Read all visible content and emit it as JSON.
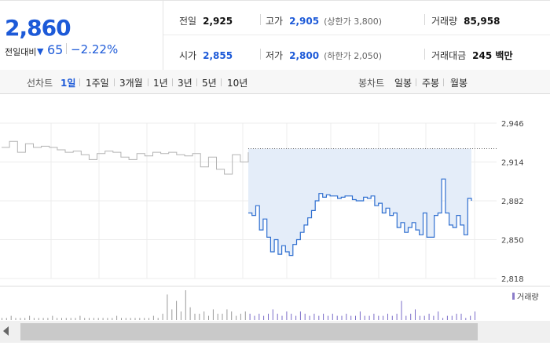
{
  "quote": {
    "price": "2,860",
    "change_label": "전일대비",
    "change_icon": "down-triangle-icon",
    "change_value": "65",
    "change_pct": "−2.22%",
    "stats": {
      "prev_close": {
        "label": "전일",
        "value": "2,925"
      },
      "high": {
        "label": "고가",
        "value": "2,905",
        "sub": "(상한가 3,800)"
      },
      "volume": {
        "label": "거래량",
        "value": "85,958"
      },
      "open": {
        "label": "시가",
        "value": "2,855"
      },
      "low": {
        "label": "저가",
        "value": "2,800",
        "sub": "(하한가 2,050)"
      },
      "amount": {
        "label": "거래대금",
        "value": "245 백만"
      }
    }
  },
  "tabs": {
    "line_label": "선차트",
    "line_items": [
      "1일",
      "1주일",
      "3개월",
      "1년",
      "3년",
      "5년",
      "10년"
    ],
    "candle_label": "봉차트",
    "candle_items": [
      "일봉",
      "주봉",
      "월봉"
    ]
  },
  "chart_data": {
    "type": "line",
    "y_ticks": [
      "2,946",
      "2,914",
      "2,882",
      "2,850",
      "2,818"
    ],
    "ylim": [
      2818,
      2946
    ],
    "prev_close": 2925,
    "series": [
      {
        "values": [
          2926,
          2931,
          2922,
          2929,
          2926,
          2927,
          2926,
          2924,
          2922,
          2923,
          2920,
          2916,
          2921,
          2923,
          2922,
          2918,
          2916,
          2921,
          2919,
          2922,
          2921,
          2922,
          2920,
          2919,
          2921,
          2910,
          2918,
          2908,
          2904,
          2920,
          2914,
          2922
        ]
      },
      {
        "values": [
          2872,
          2870,
          2878,
          2858,
          2867,
          2852,
          2840,
          2850,
          2838,
          2845,
          2840,
          2837,
          2846,
          2850,
          2856,
          2862,
          2868,
          2874,
          2882,
          2888,
          2885,
          2887,
          2886,
          2886,
          2884,
          2885,
          2886,
          2886,
          2883,
          2882,
          2882,
          2885,
          2884,
          2886,
          2878,
          2880,
          2872,
          2876,
          2870,
          2872,
          2860,
          2864,
          2856,
          2860,
          2864,
          2858,
          2854,
          2872,
          2852,
          2852,
          2870,
          2872,
          2900,
          2872,
          2862,
          2860,
          2870,
          2862,
          2854,
          2884,
          2882
        ]
      }
    ],
    "volume_label": "거래량",
    "volume": [
      1,
      1,
      2,
      1,
      1,
      1,
      2,
      1,
      1,
      1,
      1,
      2,
      1,
      1,
      1,
      1,
      1,
      2,
      1,
      1,
      1,
      1,
      1,
      1,
      1,
      2,
      1,
      1,
      1,
      1,
      1,
      1,
      1,
      2,
      1,
      3,
      12,
      5,
      9,
      4,
      14,
      6,
      3,
      3,
      4,
      2,
      5,
      3,
      3,
      5,
      4,
      2,
      3,
      4,
      3,
      2,
      3,
      2,
      3,
      5,
      3,
      2,
      4,
      3,
      2,
      4,
      3,
      2,
      3,
      2,
      3,
      2,
      3,
      2,
      2,
      3,
      2,
      2,
      4,
      2,
      2,
      3,
      2,
      2,
      3,
      2,
      3,
      9,
      2,
      3,
      5,
      2,
      2,
      3,
      2,
      4,
      1,
      2,
      2,
      3,
      3,
      1,
      2,
      4
    ]
  },
  "scrollbar": {
    "left_arrow_icon": "scroll-left-arrow-icon"
  }
}
